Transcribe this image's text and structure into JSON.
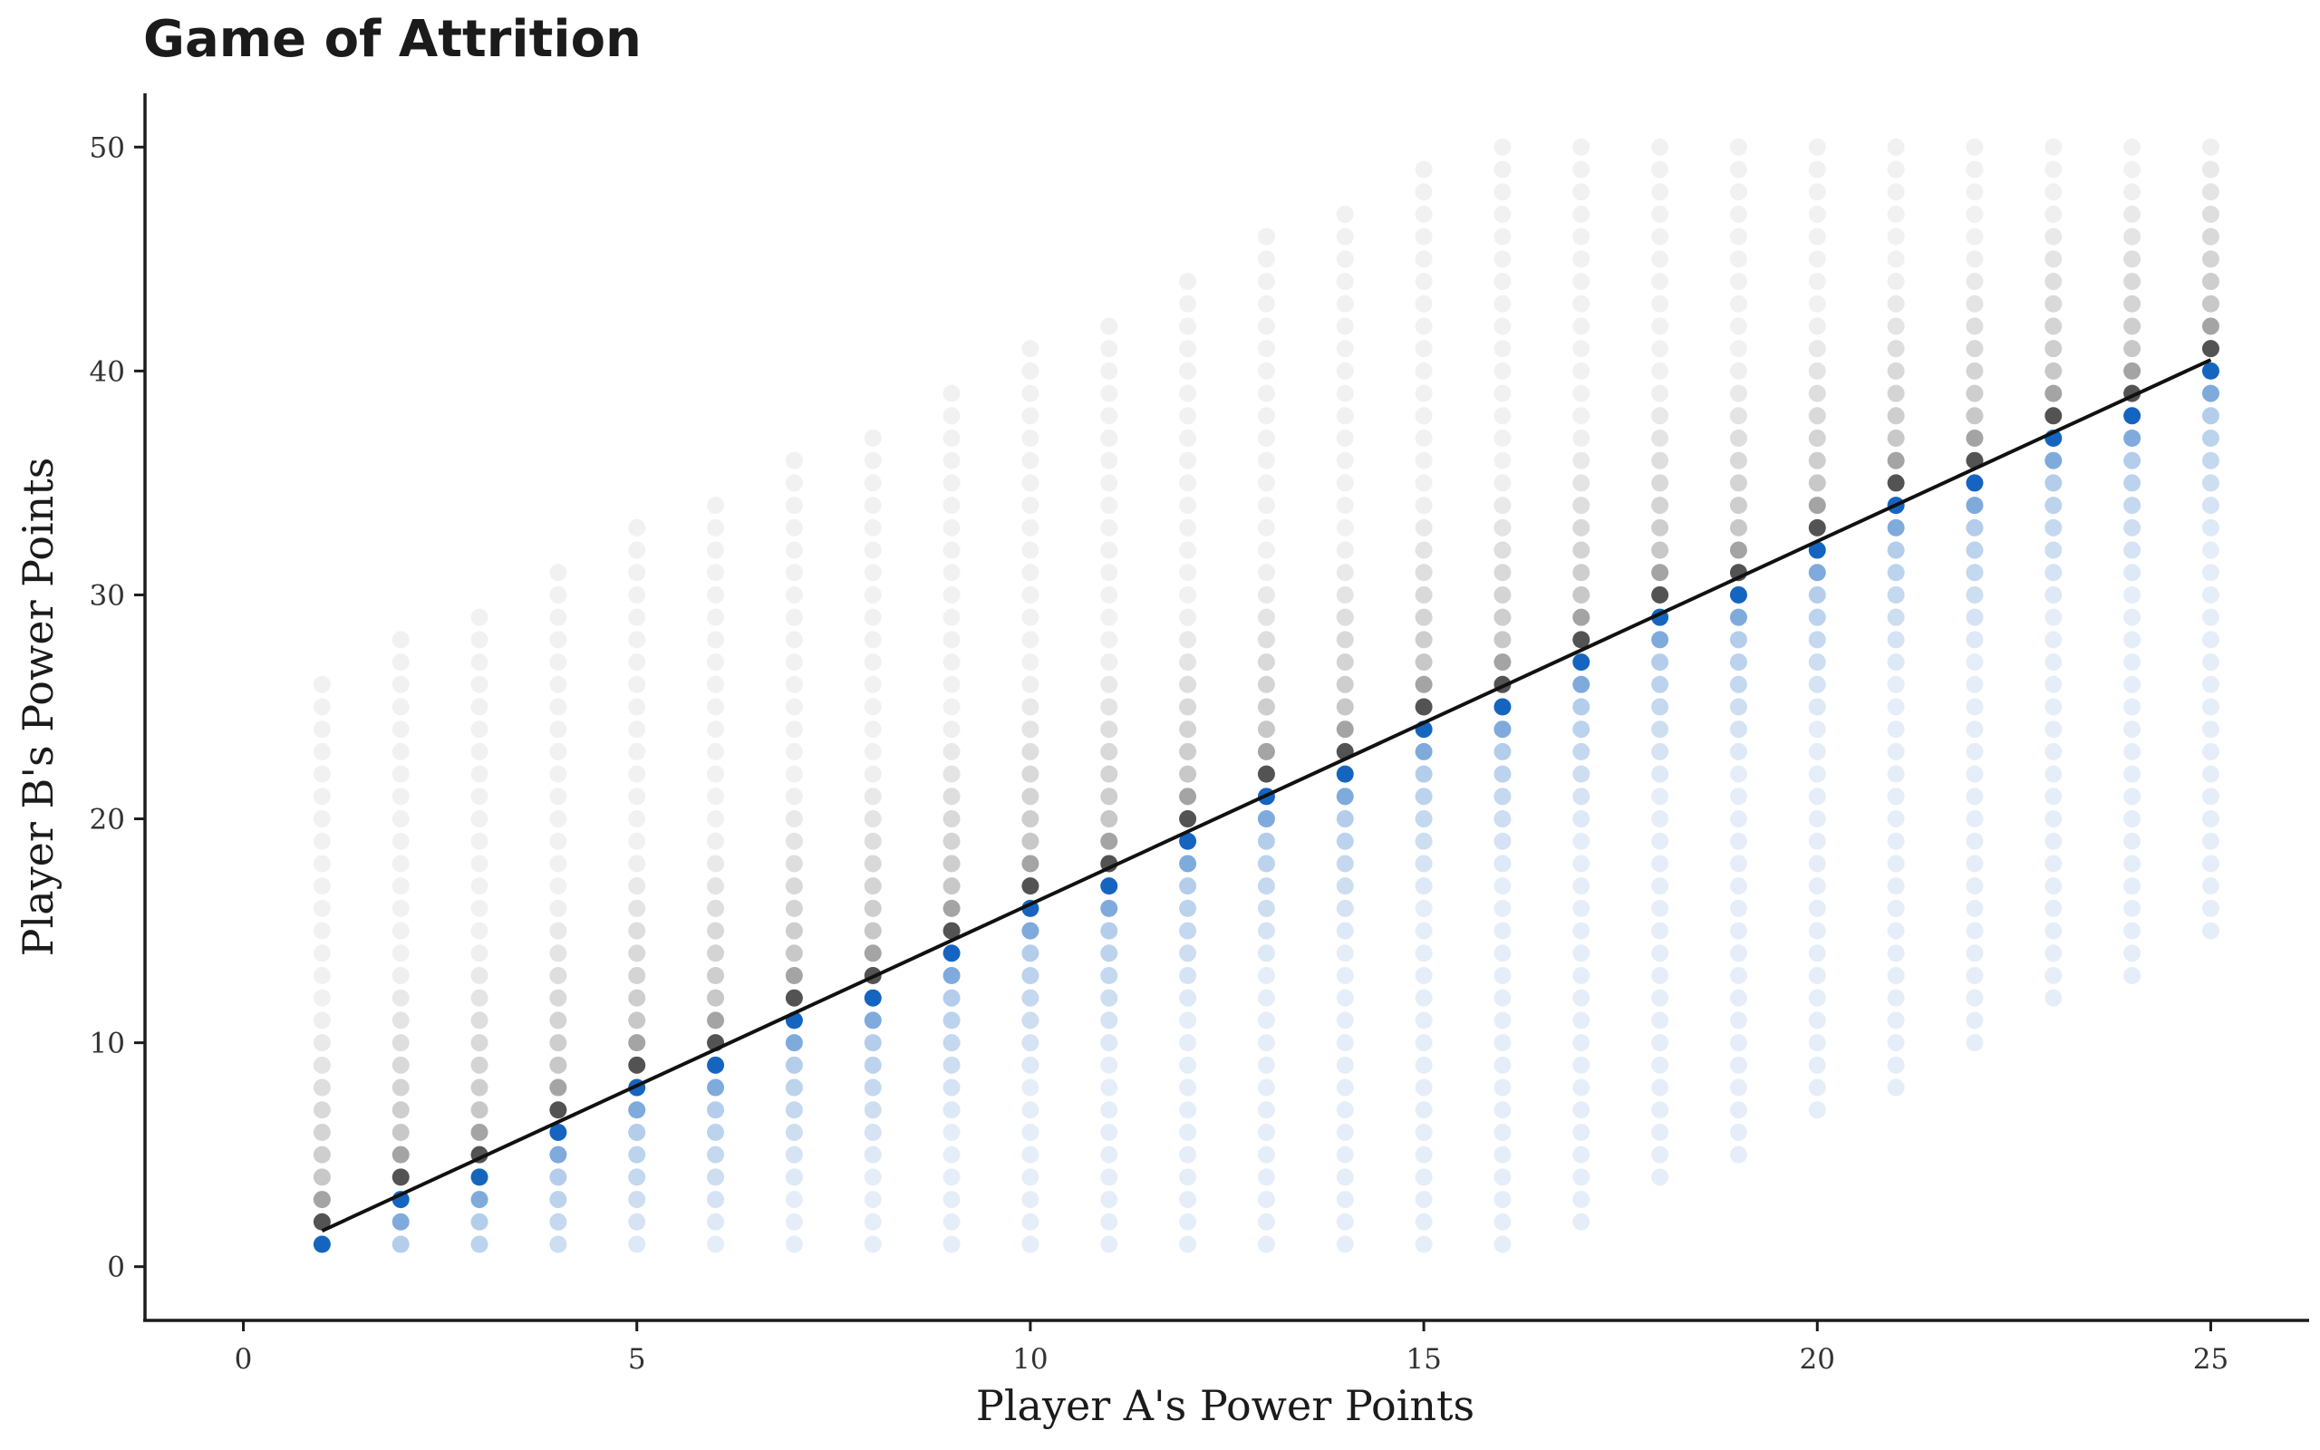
{
  "chart_data": {
    "type": "scatter",
    "title": "Game of Attrition",
    "xlabel": "Player A's Power Points",
    "ylabel": "Player B's Power Points",
    "xlim": [
      -1.25,
      26.25
    ],
    "ylim": [
      -2.4,
      52.4
    ],
    "xticks": [
      0,
      5,
      10,
      15,
      20,
      25
    ],
    "yticks": [
      0,
      10,
      20,
      30,
      40,
      50
    ],
    "grid": false,
    "legend": "none",
    "x_values": [
      1,
      2,
      3,
      4,
      5,
      6,
      7,
      8,
      9,
      10,
      11,
      12,
      13,
      14,
      15,
      16,
      17,
      18,
      19,
      20,
      21,
      22,
      23,
      24,
      25
    ],
    "y_min": [
      1,
      1,
      1,
      1,
      1,
      1,
      1,
      1,
      1,
      1,
      1,
      1,
      1,
      1,
      1,
      1,
      2,
      4,
      5,
      7,
      8,
      10,
      12,
      13,
      15
    ],
    "y_max": [
      26,
      28,
      29,
      31,
      33,
      34,
      36,
      37,
      39,
      41,
      42,
      44,
      46,
      47,
      49,
      50,
      50,
      50,
      50,
      50,
      50,
      50,
      50,
      50,
      50
    ],
    "diagonal_line": {
      "x": [
        1,
        25
      ],
      "y": [
        1.6,
        40.5
      ]
    },
    "colors": {
      "below_line": "#1565c0",
      "above_line": "#4a4a4a",
      "line": "#111111"
    }
  }
}
